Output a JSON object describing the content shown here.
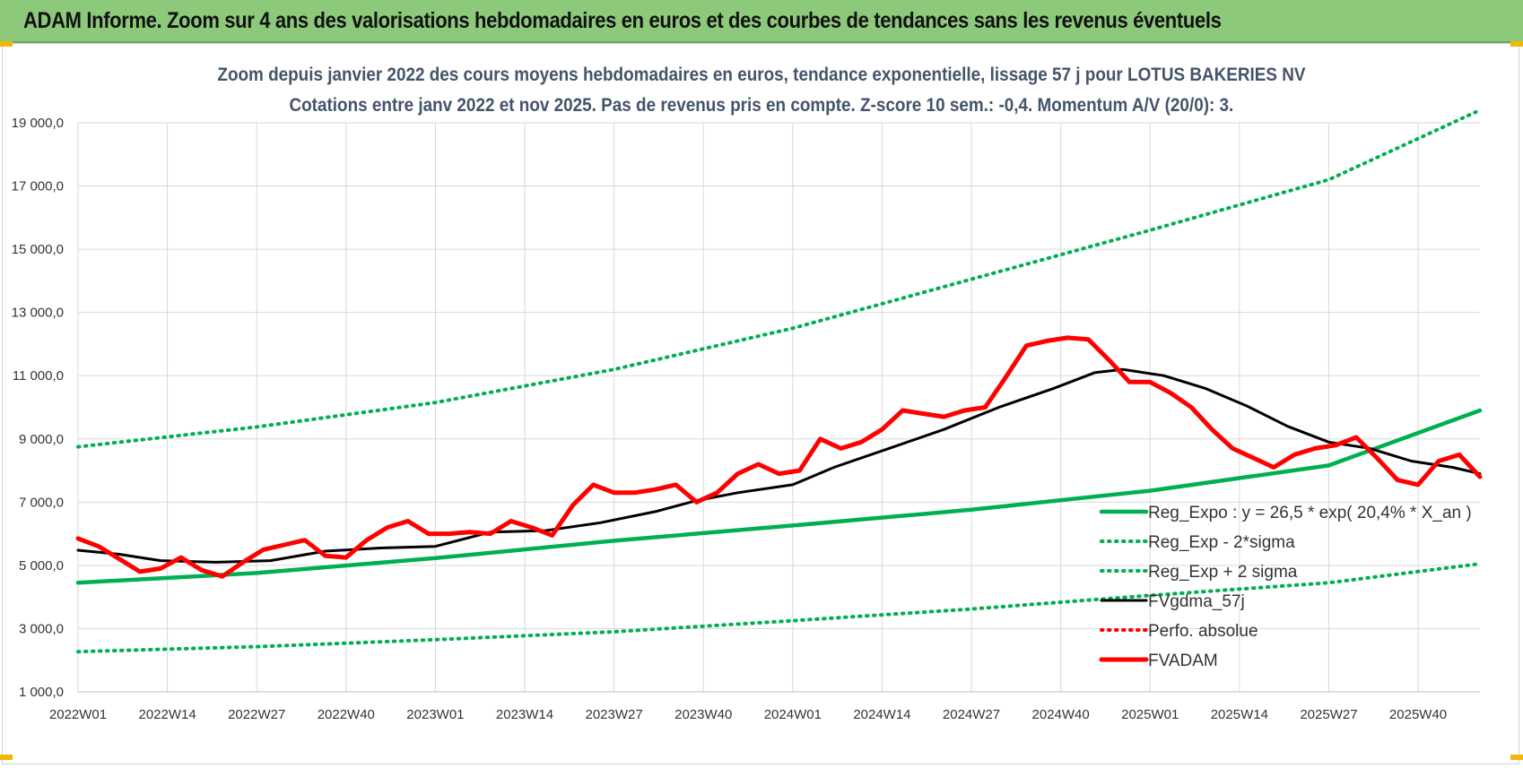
{
  "banner": {
    "title": "ADAM Informe. Zoom sur 4 ans des valorisations hebdomadaires en euros et des courbes de tendances sans les revenus éventuels"
  },
  "colors": {
    "banner": "#8cc97a",
    "reg_expo": "#00b050",
    "fvgdma": "#000000",
    "perfo": "#ff0000",
    "fvadam": "#ff0000",
    "grid": "#d9d9d9"
  },
  "chart_data": {
    "type": "line",
    "title": "Zoom depuis janvier 2022 des cours moyens hebdomadaires en euros, tendance exponentielle, lissage 57 j pour LOTUS BAKERIES NV",
    "subtitle": "Cotations entre janv 2022 et nov 2025. Pas de revenus pris en compte. Z-score 10 sem.: -0,4. Momentum A/V (20/0): 3.",
    "xlabel": "",
    "ylabel": "",
    "ylim": [
      1000,
      19000
    ],
    "y_ticks": [
      "1 000,0",
      "3 000,0",
      "5 000,0",
      "7 000,0",
      "9 000,0",
      "11 000,0",
      "13 000,0",
      "15 000,0",
      "17 000,0",
      "19 000,0"
    ],
    "x_ticks": [
      "2022W01",
      "2022W14",
      "2022W27",
      "2022W40",
      "2023W01",
      "2023W14",
      "2023W27",
      "2023W40",
      "2024W01",
      "2024W14",
      "2024W27",
      "2024W40",
      "2025W01",
      "2025W14",
      "2025W27",
      "2025W40"
    ],
    "x_range_weeks": [
      0,
      204
    ],
    "grid": true,
    "legend_position": "bottom-right",
    "series": [
      {
        "name": "Reg_Expo : y = 26,5 * exp( 20,4% *  X_an )",
        "style": "solid-thick",
        "color": "#00b050",
        "points": [
          [
            0,
            4450
          ],
          [
            26,
            4760
          ],
          [
            52,
            5230
          ],
          [
            78,
            5780
          ],
          [
            104,
            6260
          ],
          [
            130,
            6760
          ],
          [
            156,
            7360
          ],
          [
            182,
            8160
          ],
          [
            204,
            9900
          ]
        ]
      },
      {
        "name": "Reg_Exp - 2*sigma",
        "style": "dotted",
        "color": "#00b050",
        "points": [
          [
            0,
            2270
          ],
          [
            26,
            2430
          ],
          [
            52,
            2650
          ],
          [
            78,
            2900
          ],
          [
            104,
            3250
          ],
          [
            130,
            3620
          ],
          [
            156,
            4050
          ],
          [
            182,
            4450
          ],
          [
            204,
            5050
          ]
        ]
      },
      {
        "name": "Reg_Exp + 2 sigma",
        "style": "dotted",
        "color": "#00b050",
        "points": [
          [
            0,
            8750
          ],
          [
            26,
            9380
          ],
          [
            52,
            10150
          ],
          [
            78,
            11200
          ],
          [
            104,
            12500
          ],
          [
            130,
            14050
          ],
          [
            156,
            15600
          ],
          [
            182,
            17200
          ],
          [
            204,
            19400
          ]
        ]
      },
      {
        "name": "FVgdma_57j",
        "style": "solid",
        "color": "#000000",
        "points": [
          [
            0,
            5480
          ],
          [
            6,
            5350
          ],
          [
            12,
            5150
          ],
          [
            20,
            5100
          ],
          [
            28,
            5150
          ],
          [
            36,
            5450
          ],
          [
            44,
            5550
          ],
          [
            52,
            5600
          ],
          [
            60,
            6050
          ],
          [
            68,
            6100
          ],
          [
            76,
            6350
          ],
          [
            84,
            6700
          ],
          [
            90,
            7050
          ],
          [
            96,
            7300
          ],
          [
            104,
            7550
          ],
          [
            110,
            8100
          ],
          [
            118,
            8700
          ],
          [
            126,
            9300
          ],
          [
            134,
            10000
          ],
          [
            142,
            10600
          ],
          [
            148,
            11100
          ],
          [
            152,
            11200
          ],
          [
            158,
            11000
          ],
          [
            164,
            10600
          ],
          [
            170,
            10050
          ],
          [
            176,
            9400
          ],
          [
            182,
            8900
          ],
          [
            188,
            8700
          ],
          [
            194,
            8300
          ],
          [
            200,
            8100
          ],
          [
            204,
            7900
          ]
        ]
      },
      {
        "name": "Perfo. absolue",
        "style": "dotted",
        "color": "#ff0000",
        "points": []
      },
      {
        "name": "FVADAM",
        "style": "solid-thick",
        "color": "#ff0000",
        "points": [
          [
            0,
            5850
          ],
          [
            3,
            5600
          ],
          [
            6,
            5200
          ],
          [
            9,
            4800
          ],
          [
            12,
            4900
          ],
          [
            15,
            5250
          ],
          [
            18,
            4850
          ],
          [
            21,
            4650
          ],
          [
            24,
            5100
          ],
          [
            27,
            5500
          ],
          [
            30,
            5650
          ],
          [
            33,
            5800
          ],
          [
            36,
            5300
          ],
          [
            39,
            5250
          ],
          [
            42,
            5800
          ],
          [
            45,
            6200
          ],
          [
            48,
            6400
          ],
          [
            51,
            6000
          ],
          [
            54,
            6000
          ],
          [
            57,
            6050
          ],
          [
            60,
            6000
          ],
          [
            63,
            6400
          ],
          [
            66,
            6200
          ],
          [
            69,
            5950
          ],
          [
            72,
            6900
          ],
          [
            75,
            7550
          ],
          [
            78,
            7300
          ],
          [
            81,
            7300
          ],
          [
            84,
            7400
          ],
          [
            87,
            7550
          ],
          [
            90,
            7000
          ],
          [
            93,
            7300
          ],
          [
            96,
            7900
          ],
          [
            99,
            8200
          ],
          [
            102,
            7900
          ],
          [
            105,
            8000
          ],
          [
            108,
            9000
          ],
          [
            111,
            8700
          ],
          [
            114,
            8900
          ],
          [
            117,
            9300
          ],
          [
            120,
            9900
          ],
          [
            123,
            9800
          ],
          [
            126,
            9700
          ],
          [
            129,
            9900
          ],
          [
            132,
            10000
          ],
          [
            135,
            10950
          ],
          [
            138,
            11950
          ],
          [
            141,
            12100
          ],
          [
            144,
            12200
          ],
          [
            147,
            12150
          ],
          [
            150,
            11500
          ],
          [
            153,
            10800
          ],
          [
            156,
            10800
          ],
          [
            159,
            10450
          ],
          [
            162,
            10000
          ],
          [
            165,
            9300
          ],
          [
            168,
            8700
          ],
          [
            171,
            8400
          ],
          [
            174,
            8100
          ],
          [
            177,
            8500
          ],
          [
            180,
            8700
          ],
          [
            183,
            8800
          ],
          [
            186,
            9050
          ],
          [
            189,
            8400
          ],
          [
            192,
            7700
          ],
          [
            195,
            7550
          ],
          [
            198,
            8300
          ],
          [
            201,
            8500
          ],
          [
            204,
            7800
          ]
        ]
      }
    ]
  }
}
